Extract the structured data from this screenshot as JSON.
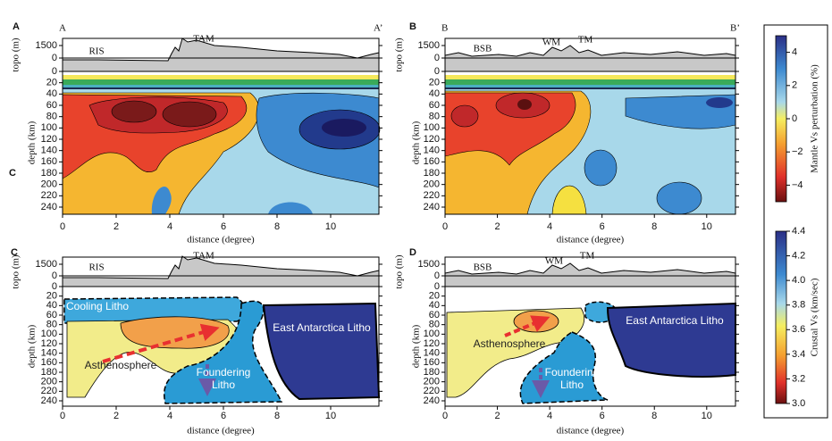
{
  "panels": [
    {
      "letter": "A",
      "left_label": "A",
      "right_label": "A’",
      "overlay_letter": "C",
      "features": [
        "RIS",
        "TAM"
      ],
      "xlim": [
        0,
        11.8
      ],
      "xticks": [
        0,
        2,
        4,
        6,
        8,
        10
      ]
    },
    {
      "letter": "B",
      "left_label": "B",
      "right_label": "B’",
      "features": [
        "BSB",
        "WM",
        "TM"
      ],
      "xlim": [
        0,
        11.1
      ],
      "xticks": [
        0,
        2,
        4,
        6,
        8,
        10
      ]
    },
    {
      "letter": "C",
      "features": [
        "RIS",
        "TAM"
      ],
      "xlim": [
        0,
        11.8
      ],
      "xticks": [
        0,
        2,
        4,
        6,
        8,
        10
      ],
      "units": [
        "Cooling Litho",
        "Asthenosphere",
        "Foundering Litho",
        "East Antarctica Litho"
      ]
    },
    {
      "letter": "D",
      "features": [
        "BSB",
        "WM",
        "TM"
      ],
      "xlim": [
        0,
        11.1
      ],
      "xticks": [
        0,
        2,
        4,
        6,
        8,
        10
      ],
      "units": [
        "Asthenosphere",
        "Foundering Litho",
        "East Antarctica Litho"
      ]
    }
  ],
  "axes": {
    "topo_label": "topo (m)",
    "depth_label": "depth (km)",
    "x_label": "distance (degree)",
    "topo_ticks": [
      1500,
      0
    ],
    "depth_ticks": [
      0,
      20,
      40,
      60,
      80,
      100,
      120,
      140,
      160,
      180,
      200,
      220,
      240
    ]
  },
  "colorbars": [
    {
      "title": "Mantle Vs perturbation (%)",
      "range": [
        -5,
        5
      ],
      "ticks": [
        4,
        2,
        0,
        {
          "value": -2,
          "label": "−2"
        },
        {
          "value": -4,
          "label": "−4"
        }
      ]
    },
    {
      "title": "Crustal Vs (km/sec)",
      "range": [
        3.0,
        4.4
      ],
      "ticks": [
        4.4,
        4.2,
        {
          "value": 4.0,
          "label": "4.0"
        },
        3.8,
        3.6,
        3.4,
        3.2,
        {
          "value": 3.0,
          "label": "3.0"
        }
      ]
    }
  ]
}
